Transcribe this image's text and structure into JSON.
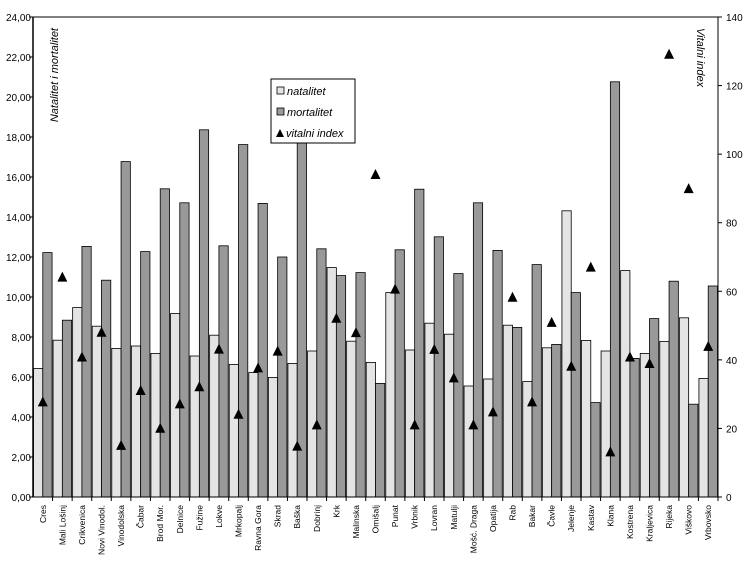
{
  "chart_data": {
    "type": "bar",
    "ylabel": "Natalitet i mortalitet",
    "y2label": "Vitalni index",
    "ylim": [
      0,
      24
    ],
    "y2lim": [
      0,
      140
    ],
    "yticks": [
      "0,00",
      "2,00",
      "4,00",
      "6,00",
      "8,00",
      "10,00",
      "12,00",
      "14,00",
      "16,00",
      "18,00",
      "20,00",
      "22,00",
      "24,00"
    ],
    "y2ticks": [
      "0",
      "20",
      "40",
      "60",
      "80",
      "100",
      "120",
      "140"
    ],
    "grid": false,
    "legend_position": "top-center",
    "categories": [
      "Cres",
      "Mali Lošinj",
      "Crikvenica",
      "Novi Vinodol.",
      "Vinodolska",
      "Čabar",
      "Brod Mor.",
      "Delnice",
      "Fužine",
      "Lokve",
      "Mrkopalj",
      "Ravna Gora",
      "Skrad",
      "Baška",
      "Dobrinj",
      "Krk",
      "Malinska",
      "Omišalj",
      "Punat",
      "Vrbnik",
      "Lovran",
      "Matulji",
      "Mošć. Draga",
      "Opatija",
      "Rab",
      "Bakar",
      "Čavle",
      "Jelenje",
      "Kastav",
      "Klana",
      "Kostrena",
      "Kraljevica",
      "Rijeka",
      "Viškovo",
      "Vrbovsko"
    ],
    "series": [
      {
        "name": "natalitet",
        "type": "bar",
        "axis": "left",
        "color": "#e4e4e4",
        "values": [
          6.43,
          7.84,
          9.47,
          8.54,
          7.43,
          7.55,
          7.18,
          9.17,
          7.05,
          8.09,
          6.63,
          6.22,
          5.98,
          6.68,
          7.3,
          11.47,
          7.79,
          6.73,
          10.22,
          7.35,
          8.69,
          8.14,
          5.55,
          5.9,
          8.59,
          5.77,
          7.46,
          14.31,
          7.83,
          7.3,
          11.32,
          7.18,
          7.78,
          8.96,
          5.93
        ]
      },
      {
        "name": "mortalitet",
        "type": "bar",
        "axis": "left",
        "color": "#999999",
        "values": [
          12.22,
          8.84,
          12.53,
          10.84,
          16.77,
          12.27,
          15.41,
          14.71,
          18.36,
          12.56,
          17.62,
          14.68,
          12.0,
          18.5,
          12.41,
          11.07,
          11.22,
          5.68,
          12.36,
          15.39,
          13.01,
          11.17,
          14.71,
          12.33,
          8.48,
          11.62,
          7.63,
          10.22,
          4.72,
          20.76,
          6.93,
          8.92,
          10.79,
          4.64,
          10.55
        ]
      },
      {
        "name": "vitalni index",
        "type": "scatter",
        "axis": "right",
        "marker": "triangle",
        "color": "#000000",
        "values": [
          27.6,
          64.0,
          40.7,
          47.9,
          14.9,
          30.9,
          19.9,
          27.0,
          32.0,
          43.0,
          24.0,
          37.5,
          42.4,
          14.7,
          20.9,
          52.0,
          47.8,
          93.9,
          60.5,
          20.9,
          42.9,
          34.6,
          20.9,
          24.7,
          58.1,
          27.6,
          50.8,
          38.0,
          66.9,
          13.0,
          40.7,
          38.8,
          129.0,
          89.8,
          43.8
        ]
      }
    ]
  }
}
